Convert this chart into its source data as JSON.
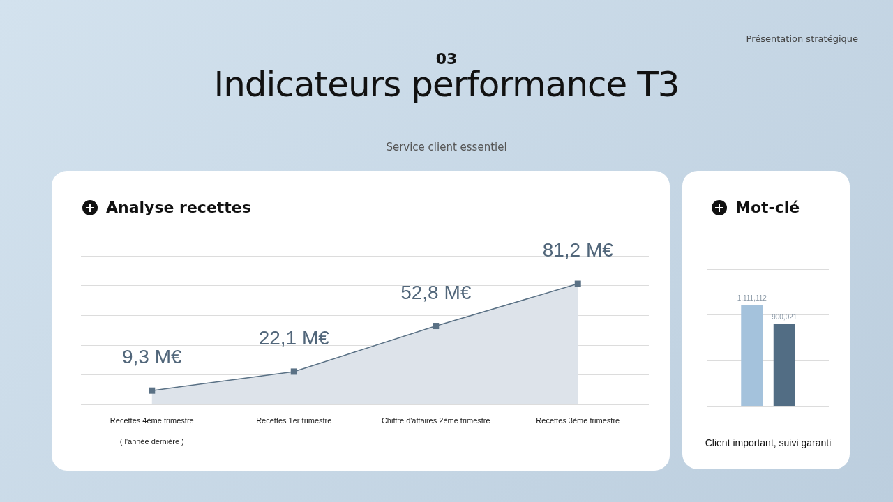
{
  "chart_data": [
    {
      "type": "area",
      "title": "Analyse recettes",
      "annotations": [
        "Présentation stratégique",
        "03",
        "Indicateurs performance T3",
        "Service client essentiel"
      ],
      "categories": [
        "Recettes 4ème trimestre\n( l'année dernière )",
        "Recettes 1er trimestre",
        "Chiffre d'affaires 2ème trimestre",
        "Recettes 3ème trimestre"
      ],
      "series": [
        {
          "color": "#5a7185",
          "values": [
            9.3,
            22.1,
            52.8,
            81.2
          ],
          "value_labels": [
            "9,3 M€",
            "22,1 M€",
            "52,8 M€",
            "81,2 M€"
          ]
        }
      ],
      "ylim": [
        0,
        100
      ],
      "yticks": [
        {
          "value": 0,
          "label": null
        },
        {
          "value": 20,
          "label": null
        },
        {
          "value": 40,
          "label": null
        },
        {
          "value": 60,
          "label": null
        },
        {
          "value": 80,
          "label": null
        },
        {
          "value": 100,
          "label": null
        }
      ],
      "grid": "y",
      "marker": "square",
      "line_style": "solid",
      "tick_labels": "x"
    },
    {
      "type": "bar",
      "title": "Mot-clé",
      "xlabel": "Client important, suivi garanti",
      "categories": [
        null
      ],
      "series": [
        {
          "color": "#a4c2dc",
          "values": [
            1111112
          ],
          "value_labels": [
            "1,111,112"
          ]
        },
        {
          "color": "#526d84",
          "values": [
            900021
          ],
          "value_labels": [
            "900,021"
          ]
        }
      ],
      "ylim": [
        0,
        1500000
      ],
      "yticks": [
        {
          "value": 0,
          "label": null
        },
        {
          "value": 500000,
          "label": null
        },
        {
          "value": 1000000,
          "label": null
        },
        {
          "value": 1500000,
          "label": null
        }
      ],
      "grid": "y",
      "tick_labels": false
    }
  ]
}
